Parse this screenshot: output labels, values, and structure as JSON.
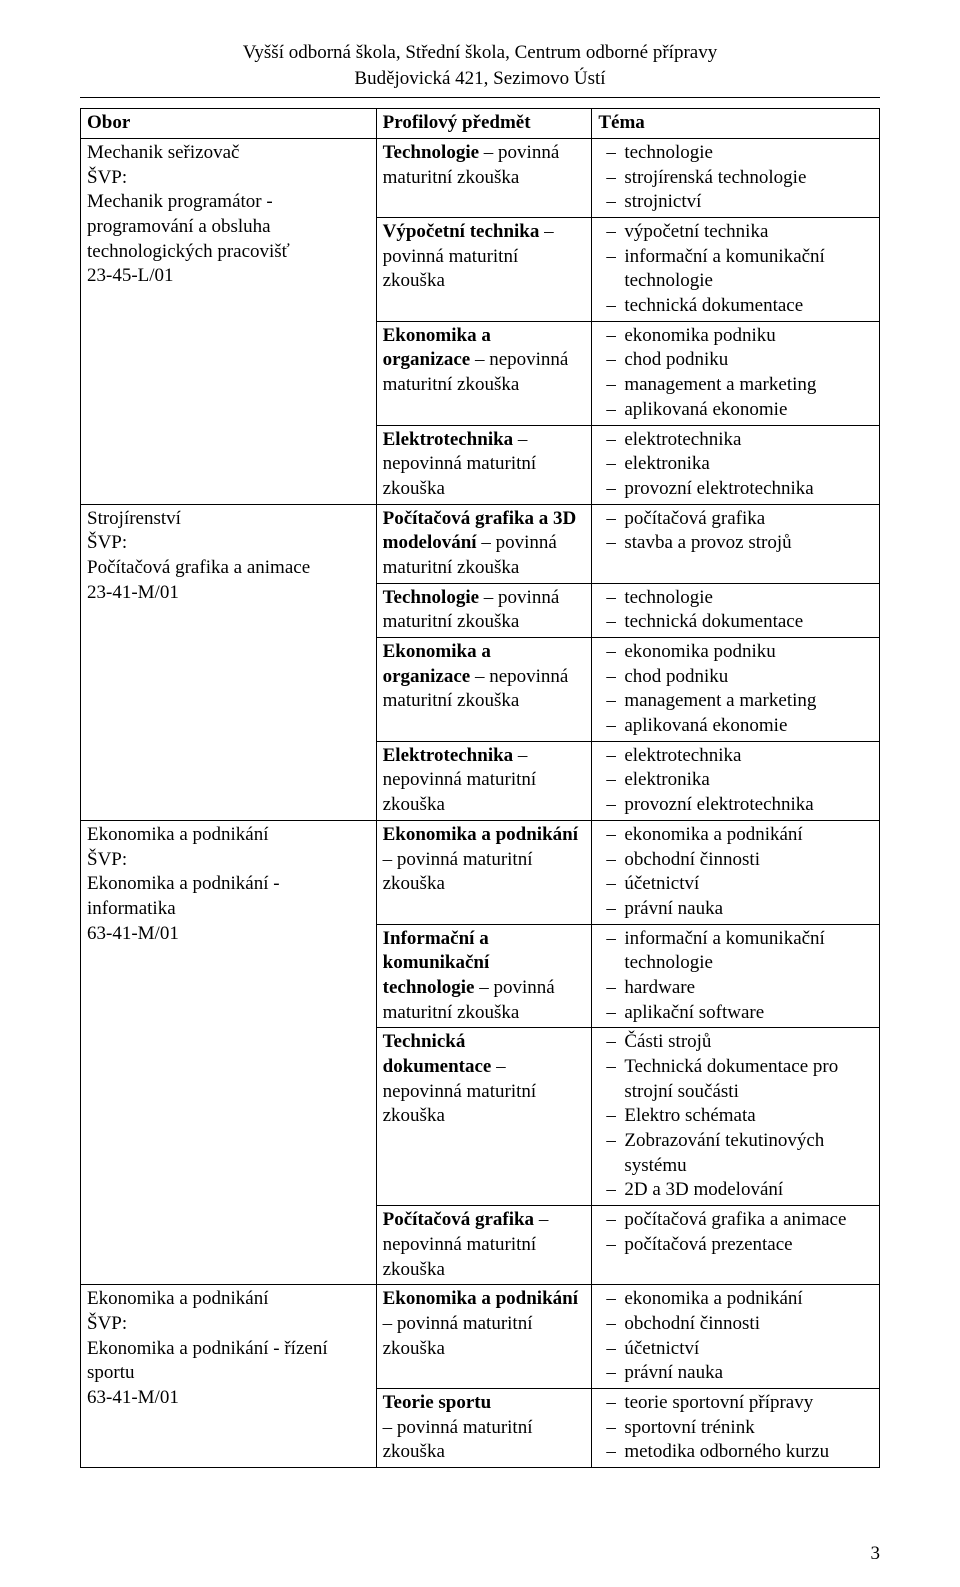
{
  "header": {
    "line1": "Vyšší odborná škola, Střední škola, Centrum odborné přípravy",
    "line2": "Budějovická 421, Sezimovo Ústí"
  },
  "columns": {
    "c1": "Obor",
    "c2": "Profilový předmět",
    "c3": "Téma"
  },
  "page_number": "3",
  "obor1": {
    "l1": "Mechanik seřizovač",
    "l2": "ŠVP:",
    "l3": "Mechanik programátor -",
    "l4": "programování a obsluha",
    "l5": "technologických pracovišť",
    "l6": "23-45-L/01"
  },
  "obor2": {
    "l1": "Strojírenství",
    "l2": "ŠVP:",
    "l3": "Počítačová grafika a animace",
    "l4": "23-41-M/01"
  },
  "obor3": {
    "l1": "Ekonomika a podnikání",
    "l2": "ŠVP:",
    "l3": "Ekonomika a podnikání - informatika",
    "l4": "63-41-M/01"
  },
  "obor4": {
    "l1": "Ekonomika a podnikání",
    "l2": "ŠVP:",
    "l3": "Ekonomika a podnikání - řízení sportu",
    "l4": "63-41-M/01"
  },
  "subj": {
    "tech_pov": "Technologie – povinná maturitní zkouška",
    "vypoc": "Výpočetní technika – povinná maturitní zkouška",
    "eko_org": "Ekonomika a organizace – nepovinná maturitní zkouška",
    "elektro": "Elektrotechnika – nepovinná maturitní zkouška",
    "pg3d": "Počítačová grafika a 3D modelování – povinná maturitní zkouška",
    "eko_pod_pov": "Ekonomika a podnikání – povinná maturitní zkouška",
    "ikt": "Informační a komunikační technologie – povinná maturitní zkouška",
    "techdok": "Technická dokumentace – nepovinná maturitní zkouška",
    "pg_nep": "Počítačová grafika – nepovinná maturitní zkouška",
    "teorie_sportu": "Teorie sportu – povinná maturitní zkouška"
  },
  "tema": {
    "r1": [
      "technologie",
      "strojírenská technologie",
      "strojnictví"
    ],
    "r2": [
      "výpočetní technika",
      "informační a komunikační technologie",
      "technická dokumentace"
    ],
    "r3": [
      "ekonomika podniku",
      "chod podniku",
      "management a marketing",
      "aplikovaná ekonomie"
    ],
    "r4": [
      "elektrotechnika",
      "elektronika",
      "provozní elektrotechnika"
    ],
    "r5": [
      "počítačová grafika",
      "stavba a provoz strojů"
    ],
    "r6": [
      "technologie",
      "technická dokumentace"
    ],
    "r7": [
      "ekonomika podniku",
      "chod podniku",
      "management a marketing",
      "aplikovaná ekonomie"
    ],
    "r8": [
      "elektrotechnika",
      "elektronika",
      "provozní elektrotechnika"
    ],
    "r9": [
      "ekonomika a podnikání",
      "obchodní činnosti",
      "účetnictví",
      "právní nauka"
    ],
    "r10": [
      "informační a komunikační technologie",
      "hardware",
      "aplikační software"
    ],
    "r11": [
      "Části strojů",
      "Technická dokumentace pro strojní součásti",
      "Elektro schémata",
      "Zobrazování tekutinových systému",
      "2D a 3D modelování"
    ],
    "r12": [
      "počítačová grafika a animace",
      "počítačová prezentace"
    ],
    "r13": [
      "ekonomika a podnikání",
      "obchodní činnosti",
      "účetnictví",
      "právní nauka"
    ],
    "r14": [
      "teorie sportovní přípravy",
      "sportovní trénink",
      "metodika odborného kurzu"
    ]
  },
  "bold": {
    "tech": "Technologie",
    "vypoc": "Výpočetní technika",
    "eko_org1": "Ekonomika a",
    "eko_org2": "organizace",
    "elektro": "Elektrotechnika",
    "pg3d1": "Počítačová grafika a 3D",
    "pg3d2": "modelování",
    "ekopod": "Ekonomika a podnikání",
    "ikt1": "Informační a",
    "ikt2": "komunikační",
    "ikt3": "technologie",
    "td1": "Technická",
    "td2": "dokumentace",
    "pg": "Počítačová grafika",
    "ts": "Teorie sportu"
  },
  "plain": {
    "pov": " – povinná",
    "pov_w": " povinná",
    "pov_only": "povinná",
    "nep": " – nepovinná",
    "nep_w": " nepovinná",
    "mat_zk": "maturitní zkouška",
    "zk": "zkouška",
    "pov_mat": "povinná maturitní",
    "nep_mat": "nepovinná maturitní",
    "dash_pov_mat": " – povinná maturitní",
    "dash": " –"
  }
}
